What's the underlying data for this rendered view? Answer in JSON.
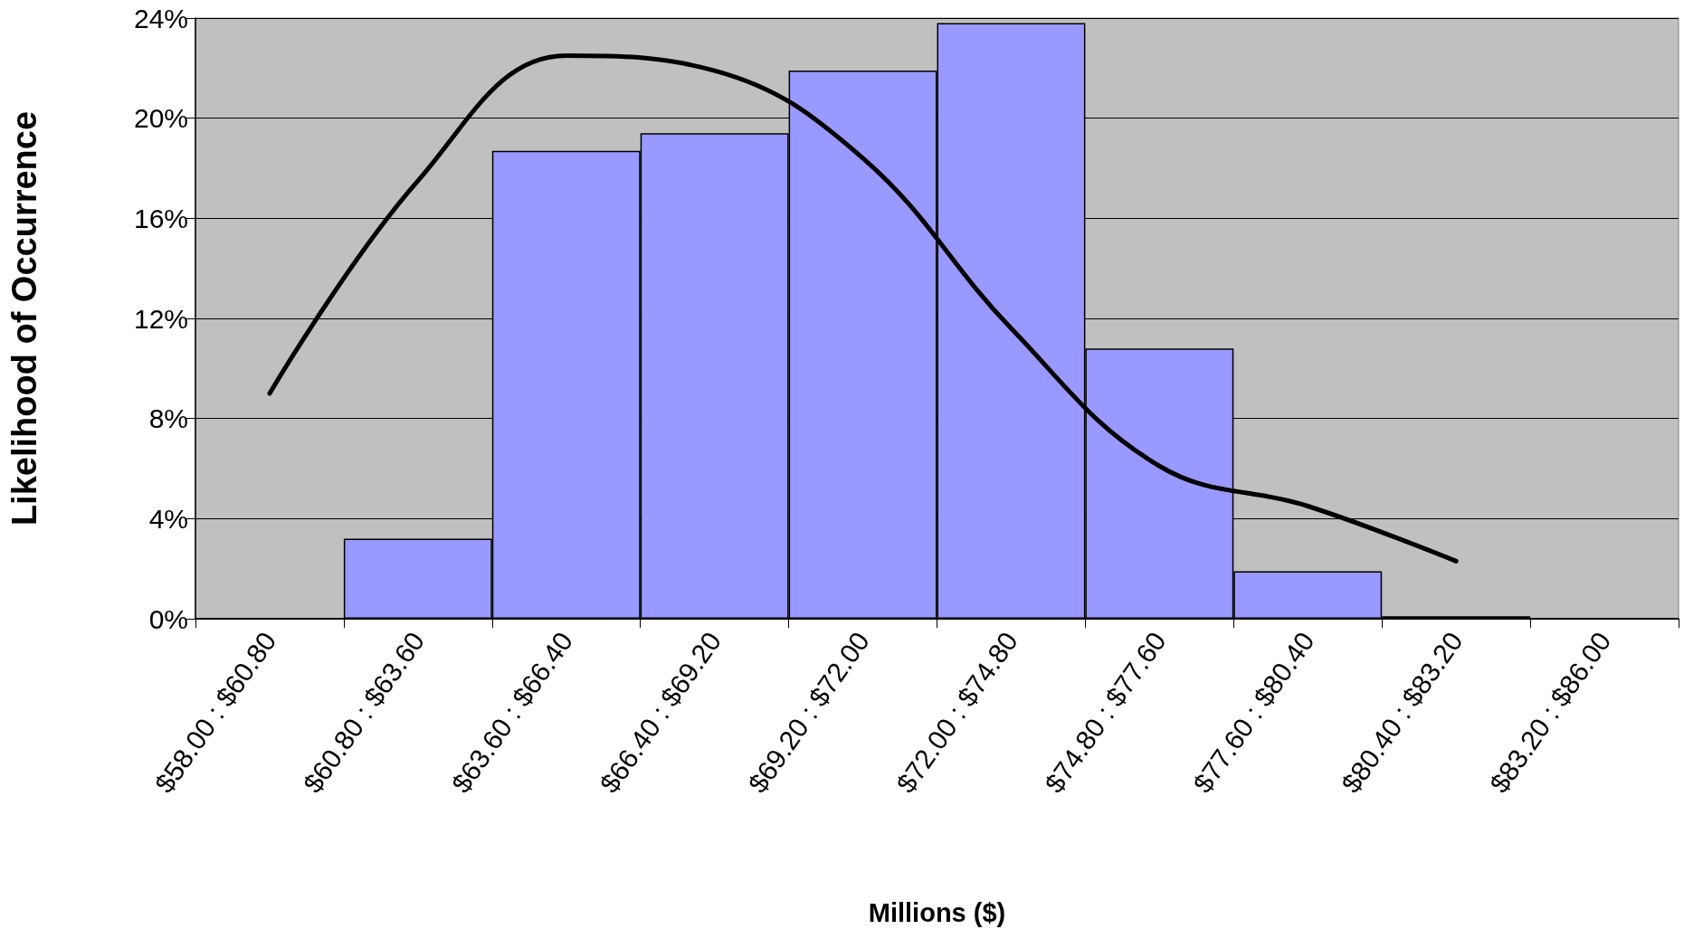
{
  "chart_data": {
    "type": "bar",
    "xlabel": "Millions ($)",
    "ylabel": "Likelihood of Occurrence",
    "categories": [
      "$58.00 : $60.80",
      "$60.80 : $63.60",
      "$63.60 : $66.40",
      "$66.40 : $69.20",
      "$69.20 : $72.00",
      "$72.00 : $74.80",
      "$74.80 : $77.60",
      "$77.60 : $80.40",
      "$80.40 : $83.20",
      "$83.20 : $86.00"
    ],
    "series": [
      {
        "color": "#9999ff",
        "values": [
          0,
          3.2,
          18.7,
          19.4,
          21.9,
          23.8,
          10.8,
          1.9,
          0.1,
          0
        ]
      },
      {
        "type": "line",
        "color": "#000000",
        "values": [
          9.0,
          17.5,
          22.5,
          21.9,
          18.4,
          11.6,
          6.1,
          4.5,
          2.3,
          null
        ]
      }
    ],
    "ylim": [
      0,
      24
    ],
    "yticks": [
      {
        "value": 0,
        "label": "0%"
      },
      {
        "value": 4,
        "label": "4%"
      },
      {
        "value": 8,
        "label": "8%"
      },
      {
        "value": 12,
        "label": "12%"
      },
      {
        "value": 16,
        "label": "16%"
      },
      {
        "value": 20,
        "label": "20%"
      },
      {
        "value": 24,
        "label": "24%"
      }
    ],
    "grid": "y",
    "marker": "none",
    "line_style": "solid"
  }
}
